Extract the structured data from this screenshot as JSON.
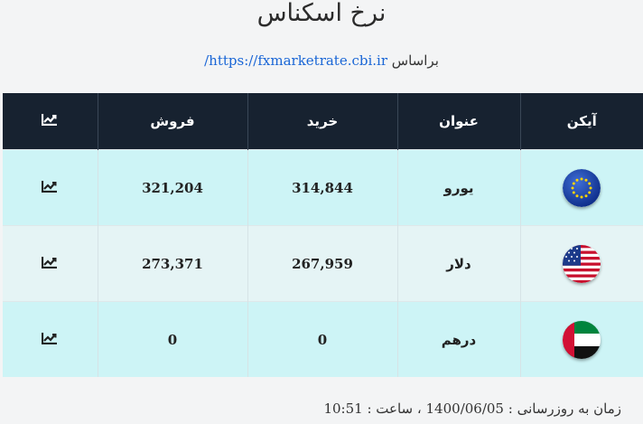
{
  "page": {
    "title": "نرخ اسکناس"
  },
  "source": {
    "prefix": "براساس",
    "link": "https://fxmarketrate.cbi.ir/"
  },
  "table": {
    "headers": {
      "icon": "آیکن",
      "name": "عنوان",
      "buy": "خرید",
      "sell": "فروش"
    },
    "rows": [
      {
        "flag": "eu-flag-icon",
        "name": "یورو",
        "buy": "314,844",
        "sell": "321,204"
      },
      {
        "flag": "us-flag-icon",
        "name": "دلار",
        "buy": "267,959",
        "sell": "273,371"
      },
      {
        "flag": "uae-flag-icon",
        "name": "درهم",
        "buy": "0",
        "sell": "0"
      }
    ]
  },
  "footer": {
    "update_label": "زمان به روزرسانی :",
    "date": "1400/06/05",
    "time_label": "، ساعت :",
    "time": "10:51"
  },
  "colors": {
    "header_bg": "#172230",
    "row_cyan": "#cdf4f6",
    "row_light": "#e5f4f5",
    "link": "#1a66d6"
  }
}
